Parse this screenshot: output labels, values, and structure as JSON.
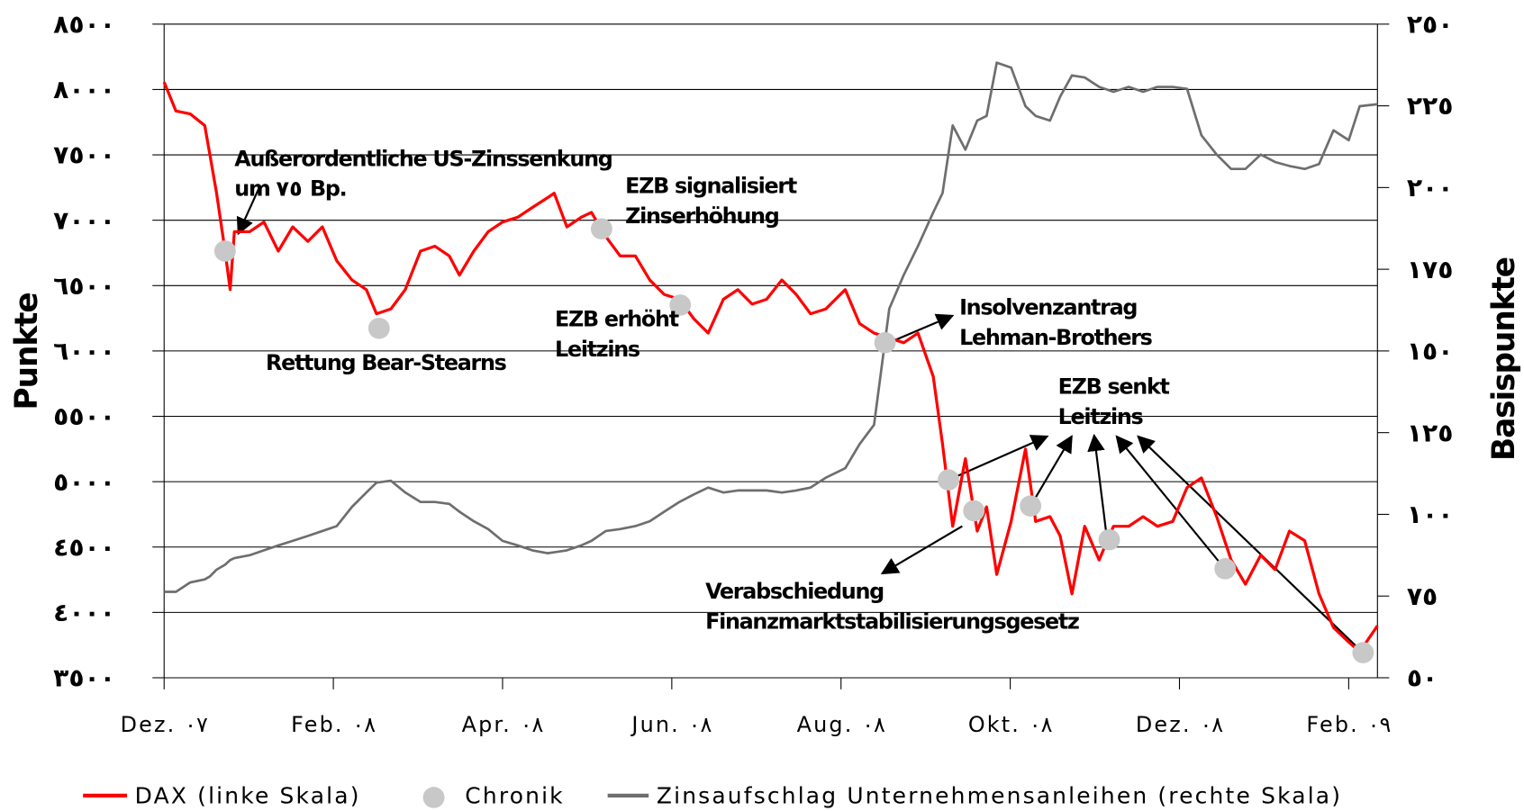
{
  "chart_data": {
    "type": "line",
    "ylabel": "Punkte",
    "y2label": "Basispunkte",
    "xlim": [
      0,
      14.34
    ],
    "xticks": [
      {
        "value": 0,
        "label": "Dez. ٠٧"
      },
      {
        "value": 2,
        "label": "Feb. ٠٨"
      },
      {
        "value": 4,
        "label": "Apr. ٠٨"
      },
      {
        "value": 6,
        "label": "Jun. ٠٨"
      },
      {
        "value": 8,
        "label": "Aug. ٠٨"
      },
      {
        "value": 10,
        "label": "Okt. ٠٨"
      },
      {
        "value": 12,
        "label": "Dez. ٠٨"
      },
      {
        "value": 14,
        "label": "Feb. ٠٩"
      }
    ],
    "ylim": [
      3500,
      8500
    ],
    "yticks": [
      {
        "value": 3500,
        "label": "٣٥٠٠"
      },
      {
        "value": 4000,
        "label": "٤٠٠٠"
      },
      {
        "value": 4500,
        "label": "٤٥٠٠"
      },
      {
        "value": 5000,
        "label": "٥٠٠٠"
      },
      {
        "value": 5500,
        "label": "٥٥٠٠"
      },
      {
        "value": 6000,
        "label": "٦٠٠٠"
      },
      {
        "value": 6500,
        "label": "٦٥٠٠"
      },
      {
        "value": 7000,
        "label": "٧٠٠٠"
      },
      {
        "value": 7500,
        "label": "٧٥٠٠"
      },
      {
        "value": 8000,
        "label": "٨٠٠٠"
      },
      {
        "value": 8500,
        "label": "٨٥٠٠"
      }
    ],
    "y2lim": [
      50,
      250
    ],
    "y2ticks": [
      {
        "value": 50,
        "label": "٥٠"
      },
      {
        "value": 75,
        "label": "٧٥"
      },
      {
        "value": 100,
        "label": "١٠٠"
      },
      {
        "value": 125,
        "label": "١٢٥"
      },
      {
        "value": 150,
        "label": "١٥٠"
      },
      {
        "value": 175,
        "label": "١٧٥"
      },
      {
        "value": 200,
        "label": "٢٠٠"
      },
      {
        "value": 225,
        "label": "٢٢٥"
      },
      {
        "value": 250,
        "label": "٢٥٠"
      }
    ],
    "grid": true,
    "x": [
      0,
      0.14,
      0.31,
      0.48,
      0.54,
      0.62,
      0.72,
      0.78,
      0.83,
      1.01,
      1.18,
      1.35,
      1.52,
      1.7,
      1.87,
      2.04,
      2.22,
      2.39,
      2.51,
      2.68,
      2.85,
      3.03,
      3.2,
      3.37,
      3.49,
      3.66,
      3.83,
      4.0,
      4.18,
      4.35,
      4.53,
      4.61,
      4.76,
      4.93,
      5.05,
      5.22,
      5.39,
      5.57,
      5.74,
      5.91,
      6.09,
      6.26,
      6.43,
      6.61,
      6.78,
      6.95,
      7.12,
      7.3,
      7.47,
      7.64,
      7.82,
      8.05,
      8.22,
      8.39,
      8.57,
      8.74,
      8.91,
      9.09,
      9.2,
      9.32,
      9.47,
      9.61,
      9.72,
      9.84,
      10.01,
      10.18,
      10.3,
      10.47,
      10.59,
      10.73,
      10.88,
      11.05,
      11.22,
      11.4,
      11.57,
      11.74,
      11.92,
      12.09,
      12.26,
      12.44,
      12.61,
      12.78,
      12.96,
      13.13,
      13.3,
      13.48,
      13.65,
      13.82,
      14.0,
      14.13,
      14.34
    ],
    "series": [
      {
        "name": "DAX (linke Skala)",
        "color": "#ff0000",
        "type": "line",
        "values": [
          8057,
          7835,
          7813,
          7724,
          7503,
          7207,
          6764,
          6469,
          6912,
          6912,
          6986,
          6764,
          6949,
          6838,
          6949,
          6690,
          6543,
          6469,
          6284,
          6321,
          6469,
          6764,
          6801,
          6727,
          6580,
          6764,
          6912,
          6986,
          7023,
          7097,
          7171,
          7207,
          6949,
          7023,
          7060,
          6875,
          6727,
          6727,
          6543,
          6432,
          6395,
          6247,
          6137,
          6395,
          6469,
          6358,
          6395,
          6543,
          6432,
          6284,
          6321,
          6469,
          6210,
          6137,
          6100,
          6063,
          6137,
          5804,
          5287,
          4659,
          5176,
          4622,
          4807,
          4290,
          4696,
          5250,
          4696,
          4733,
          4585,
          4142,
          4659,
          4401,
          4659,
          4659,
          4733,
          4659,
          4696,
          4955,
          5029,
          4733,
          4401,
          4216,
          4438,
          4327,
          4622,
          4549,
          4142,
          3884,
          3773,
          3699,
          3898
        ]
      },
      {
        "name": "Chronik",
        "color": "#c8c8c8",
        "type": "scatter",
        "x": [
          0.72,
          2.54,
          5.17,
          6.1,
          8.52,
          9.27,
          9.57,
          10.24,
          11.17,
          12.54,
          14.17
        ],
        "values": [
          6764,
          6173,
          6934,
          6351,
          6063,
          5014,
          4777,
          4814,
          4556,
          4334,
          3692
        ]
      },
      {
        "name": "Zinsaufschlag Unternehmensanleihen (rechte Skala)",
        "color": "#6e6e6e",
        "type": "line",
        "axis": "y2",
        "values": [
          76.3,
          76.3,
          79.2,
          80.1,
          81.0,
          83.1,
          84.6,
          86.0,
          86.6,
          87.5,
          89.0,
          90.5,
          91.9,
          93.4,
          94.9,
          96.4,
          102.3,
          106.7,
          109.7,
          110.3,
          106.7,
          103.8,
          103.8,
          103.2,
          100.8,
          97.9,
          95.5,
          91.9,
          90.5,
          89.0,
          88.1,
          88.4,
          89.0,
          90.5,
          91.9,
          94.9,
          95.5,
          96.4,
          97.9,
          100.8,
          103.8,
          106.1,
          108.2,
          106.7,
          107.3,
          107.3,
          107.3,
          106.7,
          107.3,
          108.2,
          111.2,
          114.1,
          121.5,
          127.4,
          162.9,
          173.2,
          182.1,
          192.4,
          198.3,
          219.0,
          211.6,
          220.5,
          221.9,
          238.2,
          236.7,
          224.9,
          221.9,
          220.5,
          227.8,
          234.3,
          233.7,
          230.8,
          229.3,
          230.8,
          229.3,
          230.8,
          230.8,
          230.2,
          216.0,
          210.1,
          205.7,
          205.7,
          210.1,
          207.8,
          206.6,
          205.7,
          207.2,
          217.5,
          214.5,
          224.9,
          225.5
        ]
      }
    ],
    "annotations": [
      {
        "lines": [
          "Außerordentliche US-Zinssenkung",
          "um ٧٥ Bp."
        ]
      },
      {
        "lines": [
          "EZB signalisiert",
          "Zinserhöhung"
        ]
      },
      {
        "lines": [
          "Rettung Bear-Stearns"
        ]
      },
      {
        "lines": [
          "EZB erhöht",
          "Leitzins"
        ]
      },
      {
        "lines": [
          "Insolvenzantrag",
          "Lehman-Brothers"
        ]
      },
      {
        "lines": [
          "EZB senkt",
          "Leitzins"
        ]
      },
      {
        "lines": [
          "Verabschiedung",
          "Finanzmarktstabilisierungsgesetz"
        ]
      }
    ]
  }
}
